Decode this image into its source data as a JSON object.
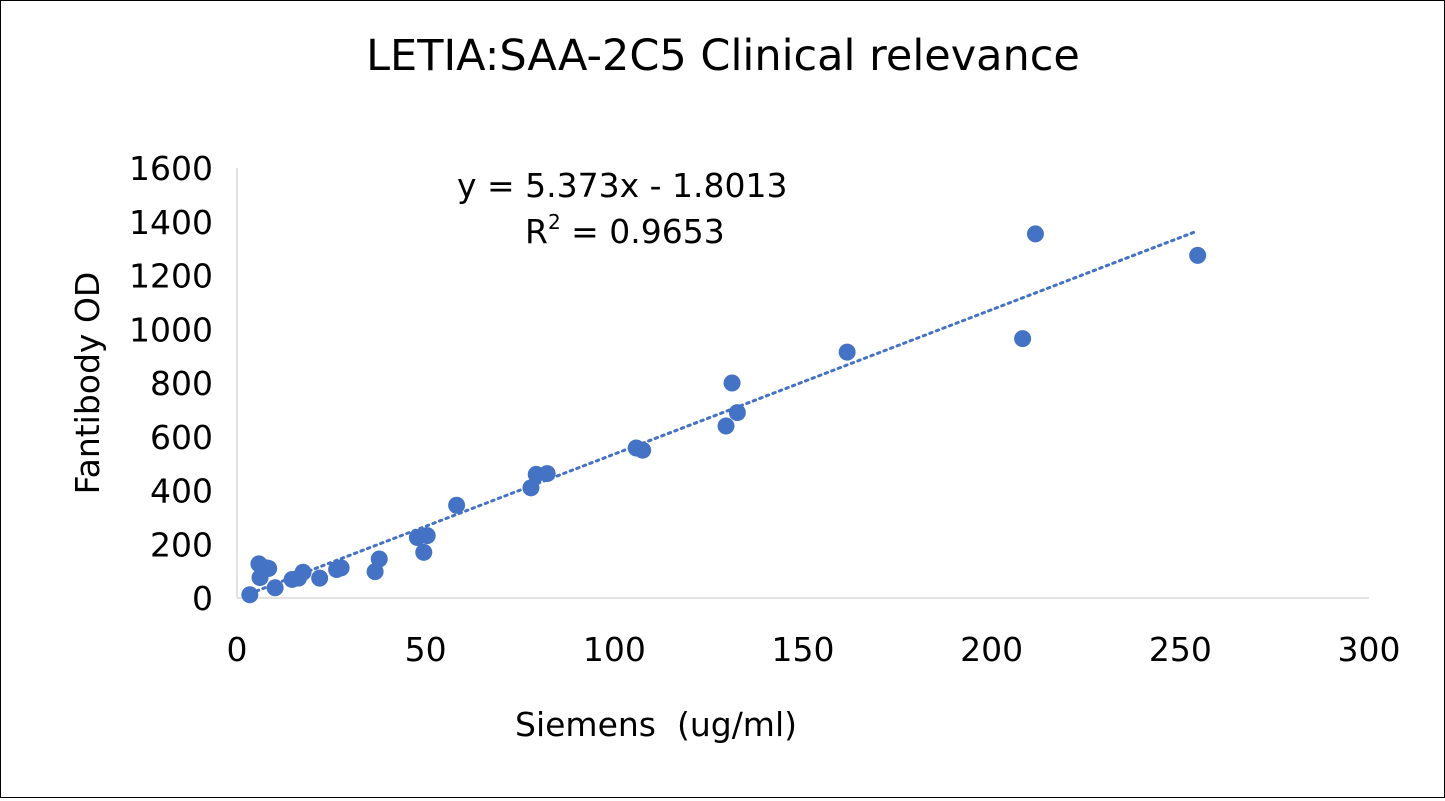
{
  "chart_data": {
    "type": "scatter",
    "title": "LETIA:SAA-2C5 Clinical relevance",
    "xlabel": "Siemens  (ug/ml)",
    "ylabel": "Fantibody OD",
    "xlim": [
      0,
      300
    ],
    "ylim": [
      0,
      1600
    ],
    "xticks": [
      "0",
      "50",
      "100",
      "150",
      "200",
      "250",
      "300"
    ],
    "yticks": [
      "0",
      "200",
      "400",
      "600",
      "800",
      "1000",
      "1200",
      "1400",
      "1600"
    ],
    "grid": false,
    "legend": "none",
    "series": [
      {
        "color": "#4472C4",
        "points": [
          {
            "x": 3.4,
            "y": 12
          },
          {
            "x": 5.8,
            "y": 127
          },
          {
            "x": 6.1,
            "y": 76
          },
          {
            "x": 7.8,
            "y": 112
          },
          {
            "x": 8.4,
            "y": 110
          },
          {
            "x": 10.1,
            "y": 38
          },
          {
            "x": 14.6,
            "y": 69
          },
          {
            "x": 16.3,
            "y": 74
          },
          {
            "x": 17.5,
            "y": 96
          },
          {
            "x": 21.9,
            "y": 74
          },
          {
            "x": 26.4,
            "y": 106
          },
          {
            "x": 27.6,
            "y": 112
          },
          {
            "x": 36.6,
            "y": 98
          },
          {
            "x": 37.7,
            "y": 145
          },
          {
            "x": 47.8,
            "y": 225
          },
          {
            "x": 49.5,
            "y": 170
          },
          {
            "x": 50.4,
            "y": 232
          },
          {
            "x": 58.2,
            "y": 345
          },
          {
            "x": 77.9,
            "y": 410
          },
          {
            "x": 79.3,
            "y": 460
          },
          {
            "x": 82.2,
            "y": 463
          },
          {
            "x": 105.8,
            "y": 558
          },
          {
            "x": 107.5,
            "y": 550
          },
          {
            "x": 129.6,
            "y": 640
          },
          {
            "x": 131.2,
            "y": 800
          },
          {
            "x": 132.6,
            "y": 690
          },
          {
            "x": 161.7,
            "y": 915
          },
          {
            "x": 208.2,
            "y": 965
          },
          {
            "x": 211.6,
            "y": 1355
          },
          {
            "x": 254.6,
            "y": 1275
          }
        ]
      }
    ],
    "trendline": {
      "type": "linear",
      "style": "dotted",
      "color": "#4472C4",
      "slope": 5.373,
      "intercept": -1.8013,
      "x_range": [
        3.4,
        254.6
      ],
      "equation": "y = 5.373x - 1.8013",
      "r2_prefix": "R",
      "r2_sup": "2",
      "r2_value": " = 0.9653"
    }
  }
}
